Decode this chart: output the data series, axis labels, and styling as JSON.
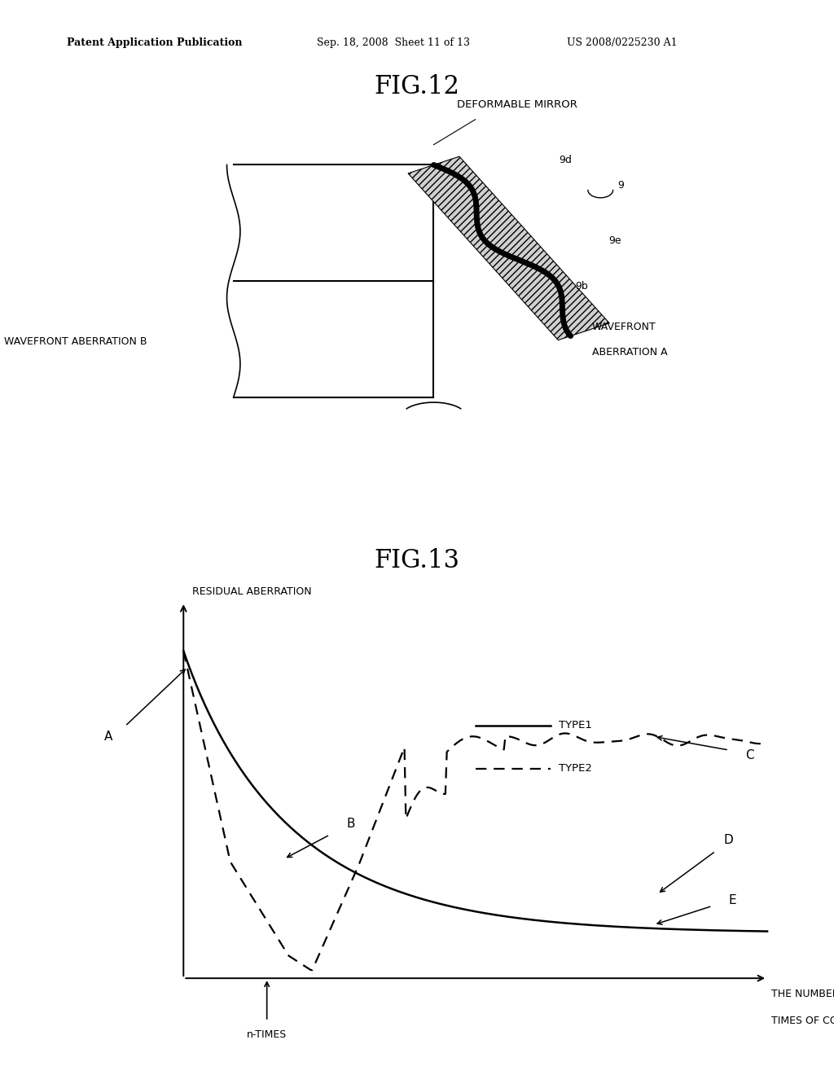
{
  "bg_color": "#ffffff",
  "header_left": "Patent Application Publication",
  "header_mid": "Sep. 18, 2008  Sheet 11 of 13",
  "header_right": "US 2008/0225230 A1",
  "fig12_title": "FIG.12",
  "fig13_title": "FIG.13",
  "fig12": {
    "deformable_mirror": "DEFORMABLE MIRROR",
    "wavefront_a_line1": "WAVEFRONT",
    "wavefront_a_line2": "ABERRATION A",
    "wavefront_b": "WAVEFRONT ABERRATION B",
    "label_9d": "9d",
    "label_9e": "9e",
    "label_9b": "9b",
    "label_9": "9"
  },
  "fig13": {
    "y_axis": "RESIDUAL ABERRATION",
    "x_axis_line1": "THE NUMBER OF",
    "x_axis_line2": "TIMES OF COMPENSATION",
    "n_times": "n-TIMES",
    "A": "A",
    "B": "B",
    "C": "C",
    "D": "D",
    "E": "E",
    "type1": "TYPE1",
    "type2": "TYPE2"
  }
}
